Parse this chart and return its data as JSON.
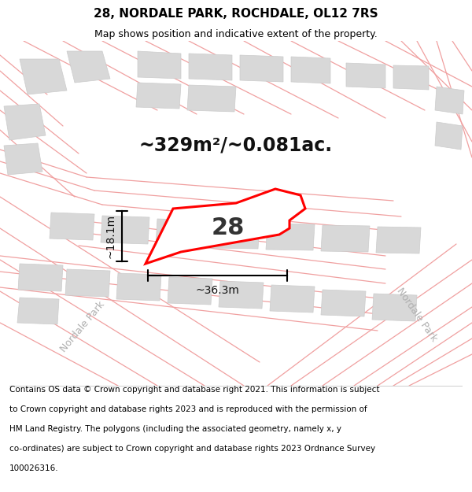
{
  "title": "28, NORDALE PARK, ROCHDALE, OL12 7RS",
  "subtitle": "Map shows position and indicative extent of the property.",
  "footer": "Contains OS data © Crown copyright and database right 2021. This information is subject to Crown copyright and database rights 2023 and is reproduced with the permission of HM Land Registry. The polygons (including the associated geometry, namely x, y co-ordinates) are subject to Crown copyright and database rights 2023 Ordnance Survey 100026316.",
  "area_text": "~329m²/~0.081ac.",
  "width_text": "~36.3m",
  "height_text": "~18.1m",
  "house_number": "28",
  "map_bg": "#f7f7f7",
  "plot_fill": "#ffffff",
  "plot_edge": "#ff0000",
  "road_color": "#f0a0a0",
  "block_color": "#d8d8d8",
  "block_edge": "#cccccc",
  "title_fontsize": 11,
  "subtitle_fontsize": 9,
  "footer_fontsize": 7.5,
  "area_fontsize": 17,
  "dim_fontsize": 10,
  "house_fontsize": 22
}
